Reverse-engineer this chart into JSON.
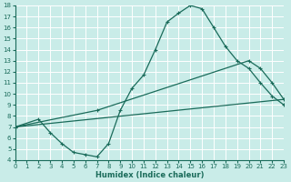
{
  "xlabel": "Humidex (Indice chaleur)",
  "xlim": [
    0,
    23
  ],
  "ylim": [
    4,
    18
  ],
  "xticks": [
    0,
    1,
    2,
    3,
    4,
    5,
    6,
    7,
    8,
    9,
    10,
    11,
    12,
    13,
    14,
    15,
    16,
    17,
    18,
    19,
    20,
    21,
    22,
    23
  ],
  "yticks": [
    4,
    5,
    6,
    7,
    8,
    9,
    10,
    11,
    12,
    13,
    14,
    15,
    16,
    17,
    18
  ],
  "bg_color": "#c9ece8",
  "grid_color": "#b0ddd8",
  "line_color": "#1a6b5a",
  "line1_x": [
    0,
    2,
    3,
    4,
    5,
    6,
    7,
    8,
    9,
    10,
    11,
    12,
    13,
    14,
    15,
    16,
    17,
    18,
    19,
    20,
    21,
    22,
    23
  ],
  "line1_y": [
    7.0,
    7.7,
    6.5,
    5.5,
    4.7,
    4.5,
    4.3,
    5.5,
    8.5,
    10.5,
    11.7,
    14.0,
    16.5,
    17.3,
    18.0,
    17.7,
    16.0,
    14.3,
    13.0,
    12.3,
    11.0,
    9.8,
    9.0
  ],
  "line2_x": [
    0,
    23
  ],
  "line2_y": [
    7.0,
    9.5
  ],
  "line3_x": [
    0,
    7,
    20,
    21,
    22,
    23
  ],
  "line3_y": [
    7.0,
    8.5,
    13.0,
    12.3,
    11.0,
    9.5
  ]
}
